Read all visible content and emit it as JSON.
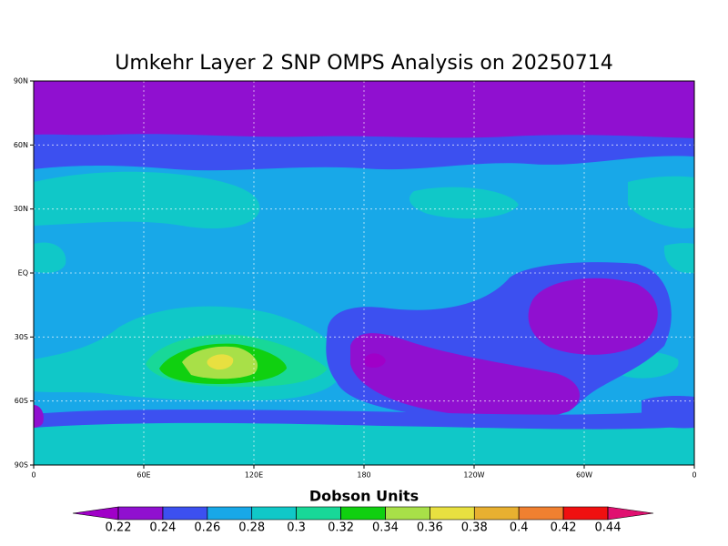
{
  "map": {
    "title": "Umkehr Layer 2 SNP OMPS Analysis on 20250714",
    "lon_ticks": [
      {
        "value": 0,
        "label": "0"
      },
      {
        "value": 60,
        "label": "60E"
      },
      {
        "value": 120,
        "label": "120E"
      },
      {
        "value": 180,
        "label": "180"
      },
      {
        "value": 240,
        "label": "120W"
      },
      {
        "value": 300,
        "label": "60W"
      },
      {
        "value": 360,
        "label": "0"
      }
    ],
    "lat_ticks": [
      {
        "value": 90,
        "label": "90N"
      },
      {
        "value": 60,
        "label": "60N"
      },
      {
        "value": 30,
        "label": "30N"
      },
      {
        "value": 0,
        "label": "EQ"
      },
      {
        "value": -30,
        "label": "30S"
      },
      {
        "value": -60,
        "label": "60S"
      },
      {
        "value": -90,
        "label": "90S"
      }
    ],
    "colorbar": {
      "title": "Dobson Units",
      "levels": [
        0.22,
        0.24,
        0.26,
        0.28,
        0.3,
        0.32,
        0.34,
        0.36,
        0.38,
        0.4,
        0.42,
        0.44
      ],
      "colors": [
        "#a000c8",
        "#9010d0",
        "#3c50f0",
        "#18a8e8",
        "#10c8c8",
        "#18d898",
        "#10d010",
        "#a8e048",
        "#e8e040",
        "#e8b030",
        "#f08030",
        "#f01010",
        "#e01070"
      ]
    }
  }
}
